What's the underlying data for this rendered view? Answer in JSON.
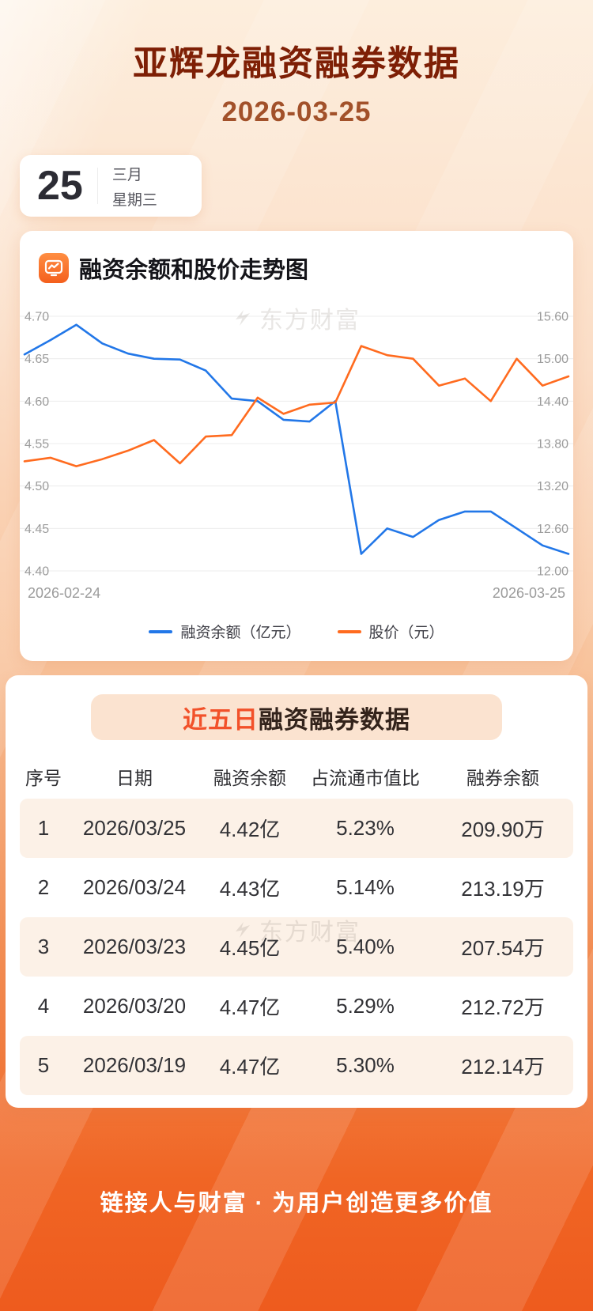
{
  "page": {
    "title": "亚辉龙融资融券数据",
    "date": "2026-03-25",
    "watermark": "东方财富",
    "footer": "链接人与财富 · 为用户创造更多价值"
  },
  "date_card": {
    "day": "25",
    "month": "三月",
    "weekday": "星期三"
  },
  "chart_card": {
    "title": "融资余额和股价走势图"
  },
  "chart_data": {
    "type": "line",
    "title": "融资余额和股价走势图",
    "x_start": "2026-02-24",
    "x_end": "2026-03-25",
    "grid": true,
    "legend_position": "bottom",
    "left_axis": {
      "label": "融资余额（亿元）",
      "min": 4.4,
      "max": 4.7,
      "ticks": [
        4.7,
        4.65,
        4.6,
        4.55,
        4.5,
        4.45,
        4.4
      ]
    },
    "right_axis": {
      "label": "股价（元）",
      "min": 12.0,
      "max": 15.6,
      "ticks": [
        15.6,
        15.0,
        14.4,
        13.8,
        13.2,
        12.6,
        12.0
      ]
    },
    "series": [
      {
        "name": "融资余额（亿元）",
        "axis": "left",
        "color": "#2277e8",
        "values": [
          4.655,
          4.672,
          4.69,
          4.668,
          4.656,
          4.65,
          4.649,
          4.636,
          4.603,
          4.6,
          4.578,
          4.576,
          4.6,
          4.42,
          4.45,
          4.44,
          4.46,
          4.47,
          4.47,
          4.45,
          4.43,
          4.42
        ]
      },
      {
        "name": "股价（元）",
        "axis": "right",
        "color": "#ff6b1f",
        "values": [
          13.55,
          13.6,
          13.48,
          13.58,
          13.7,
          13.85,
          13.52,
          13.9,
          13.92,
          14.45,
          14.22,
          14.35,
          14.38,
          15.18,
          15.05,
          15.0,
          14.62,
          14.72,
          14.4,
          15.0,
          14.62,
          14.75
        ]
      }
    ]
  },
  "table_card": {
    "title_highlight": "近五日",
    "title_rest": "融资融券数据",
    "headers": [
      "序号",
      "日期",
      "融资余额",
      "占流通市值比",
      "融券余额"
    ],
    "rows": [
      [
        "1",
        "2026/03/25",
        "4.42亿",
        "5.23%",
        "209.90万"
      ],
      [
        "2",
        "2026/03/24",
        "4.43亿",
        "5.14%",
        "213.19万"
      ],
      [
        "3",
        "2026/03/23",
        "4.45亿",
        "5.40%",
        "207.54万"
      ],
      [
        "4",
        "2026/03/20",
        "4.47亿",
        "5.29%",
        "212.72万"
      ],
      [
        "5",
        "2026/03/19",
        "4.47亿",
        "5.30%",
        "212.14万"
      ]
    ]
  },
  "colors": {
    "accent_orange": "#f4611f",
    "line_blue": "#2277e8",
    "line_orange": "#ff6b1f",
    "title_dark_red": "#7e1f05",
    "alt_row_bg": "#fcf1e7"
  }
}
